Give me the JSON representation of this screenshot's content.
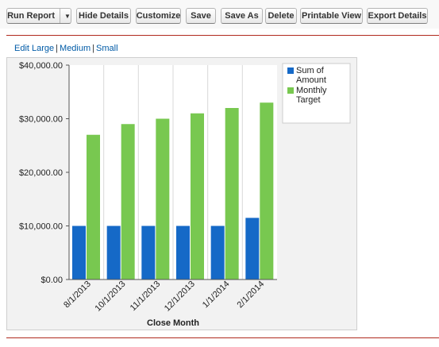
{
  "toolbar": {
    "run_report_label": "Run Report",
    "hide_details_label": "Hide Details",
    "customize_label": "Customize",
    "save_label": "Save",
    "save_as_label": "Save As",
    "delete_label": "Delete",
    "printable_view_label": "Printable View",
    "export_details_label": "Export Details"
  },
  "chart_size": {
    "edit_label": "Edit",
    "large_label": "Large",
    "medium_label": "Medium",
    "small_label": "Small",
    "separator": "|"
  },
  "colors": {
    "accent_rule": "#b02a1e",
    "series_amount": "#1569c7",
    "series_target": "#78c850"
  },
  "chart_data": {
    "type": "bar",
    "categories": [
      "8/1/2013",
      "10/1/2013",
      "11/1/2013",
      "12/1/2013",
      "1/1/2014",
      "2/1/2014"
    ],
    "series": [
      {
        "name": "Sum of Amount",
        "legend_lines": [
          "Sum of",
          "Amount"
        ],
        "values": [
          10000,
          10000,
          10000,
          10000,
          10000,
          11500
        ]
      },
      {
        "name": "Monthly Target",
        "legend_lines": [
          "Monthly",
          "Target"
        ],
        "values": [
          27000,
          29000,
          30000,
          31000,
          32000,
          33000
        ]
      }
    ],
    "y_ticks": [
      0,
      10000,
      20000,
      30000,
      40000
    ],
    "y_tick_labels": [
      "$0.00",
      "$10,000.00",
      "$20,000.00",
      "$30,000.00",
      "$40,000.00"
    ],
    "ylim": [
      0,
      40000
    ],
    "xlabel": "Close Month",
    "ylabel": "",
    "grid": "vertical",
    "legend": "top-right"
  }
}
